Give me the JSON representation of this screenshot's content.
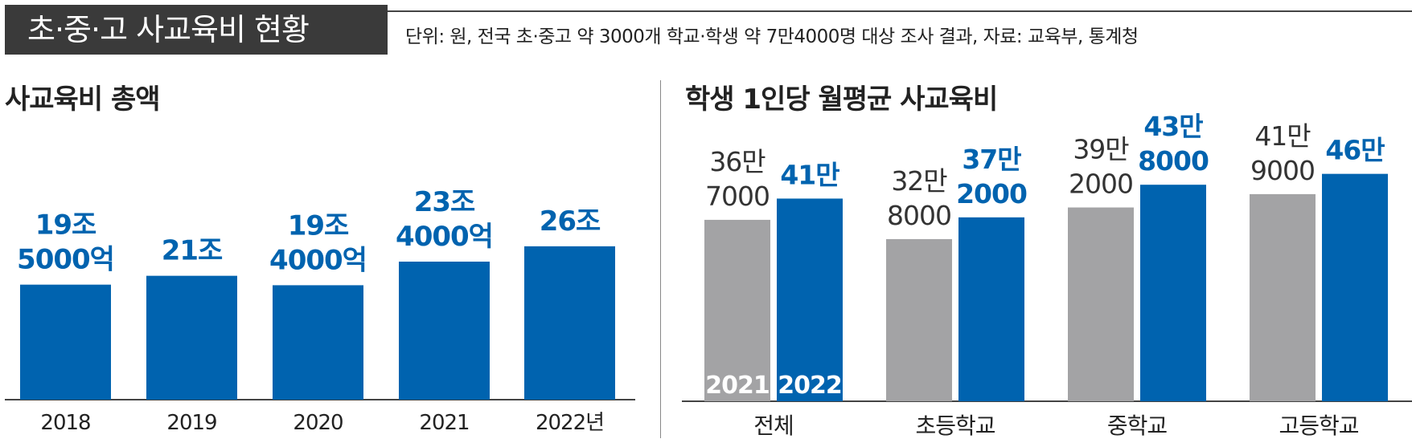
{
  "header": {
    "title": "초·중·고 사교육비 현황",
    "source": "단위: 원, 전국 초·중고 약 3000개 학교·학생 약 7만4000명 대상 조사 결과, 자료: 교육부, 통계청"
  },
  "colors": {
    "blue": "#0063AF",
    "gray": "#A3A3A5",
    "axis": "#444444",
    "text": "#222222"
  },
  "chart_data": [
    {
      "type": "bar",
      "title": "사교육비 총액",
      "unit": "원",
      "categories": [
        "2018",
        "2019",
        "2020",
        "2021",
        "2022년"
      ],
      "values": [
        19500000000000,
        21000000000000,
        19400000000000,
        23400000000000,
        26000000000000
      ],
      "value_labels": [
        [
          "19조",
          "5000억"
        ],
        [
          "21조"
        ],
        [
          "19조",
          "4000억"
        ],
        [
          "23조",
          "4000억"
        ],
        [
          "26조"
        ]
      ]
    },
    {
      "type": "bar",
      "title": "학생 1인당 월평균 사교육비",
      "unit": "원",
      "categories": [
        "전체",
        "초등학교",
        "중학교",
        "고등학교"
      ],
      "series": [
        {
          "name": "2021",
          "values": [
            367000,
            328000,
            392000,
            419000
          ],
          "value_labels": [
            [
              "36만",
              "7000"
            ],
            [
              "32만",
              "8000"
            ],
            [
              "39만",
              "2000"
            ],
            [
              "41만",
              "9000"
            ]
          ]
        },
        {
          "name": "2022",
          "values": [
            410000,
            372000,
            438000,
            460000
          ],
          "value_labels": [
            [
              "41만"
            ],
            [
              "37만",
              "2000"
            ],
            [
              "43만",
              "8000"
            ],
            [
              "46만"
            ]
          ]
        }
      ]
    }
  ]
}
